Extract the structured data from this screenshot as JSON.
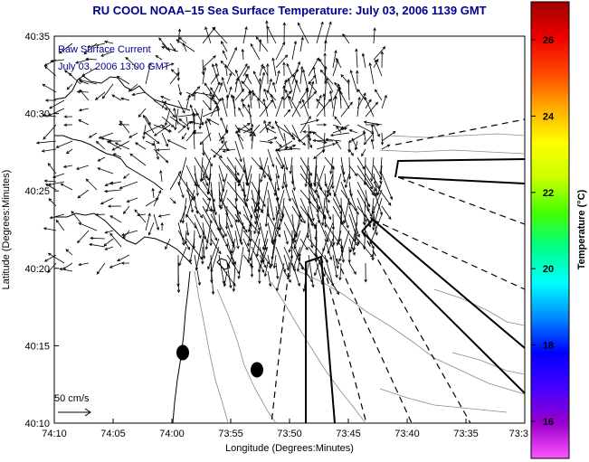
{
  "title": "RU COOL  NOAA–15  Sea Surface Temperature:  July 03, 2006 1139 GMT",
  "legend": {
    "line1": "Raw Surface Current",
    "line2": "July 03, 2006 13:00 GMT"
  },
  "scale_label": "50 cm/s",
  "x_axis": {
    "label": "Longitude (Degrees:Minutes)",
    "ticks": [
      "74:10",
      "74:05",
      "74:00",
      "73:55",
      "73:50",
      "73:45",
      "73:40",
      "73:35",
      "73:3"
    ]
  },
  "y_axis": {
    "label": "Latitude (Degrees:Minutes)",
    "ticks": [
      "40:35",
      "40:30",
      "40:25",
      "40:20",
      "40:15",
      "40:10"
    ]
  },
  "colorbar": {
    "label": "Temperature (°C)",
    "ticks": [
      "26",
      "24",
      "22",
      "20",
      "18",
      "16"
    ],
    "colors": [
      "#ff55ff",
      "#9900cc",
      "#4400ff",
      "#0000ff",
      "#0088ff",
      "#00ffff",
      "#00ff88",
      "#44ff00",
      "#ccff00",
      "#ffff00",
      "#ffaa00",
      "#ff4400",
      "#ee0000",
      "#a00000"
    ]
  },
  "colors": {
    "title": "#00008b",
    "legend_text": "#00008b",
    "vectors": "#000000",
    "contours": "#888888",
    "coastline": "#000000",
    "site_markers": "#000000"
  },
  "features": {
    "coastline": "New Jersey / New York Harbor coastline",
    "shipping_lanes": "solid and dashed channel boundaries",
    "current_field": "surface current vectors",
    "markers": "two site markers"
  }
}
